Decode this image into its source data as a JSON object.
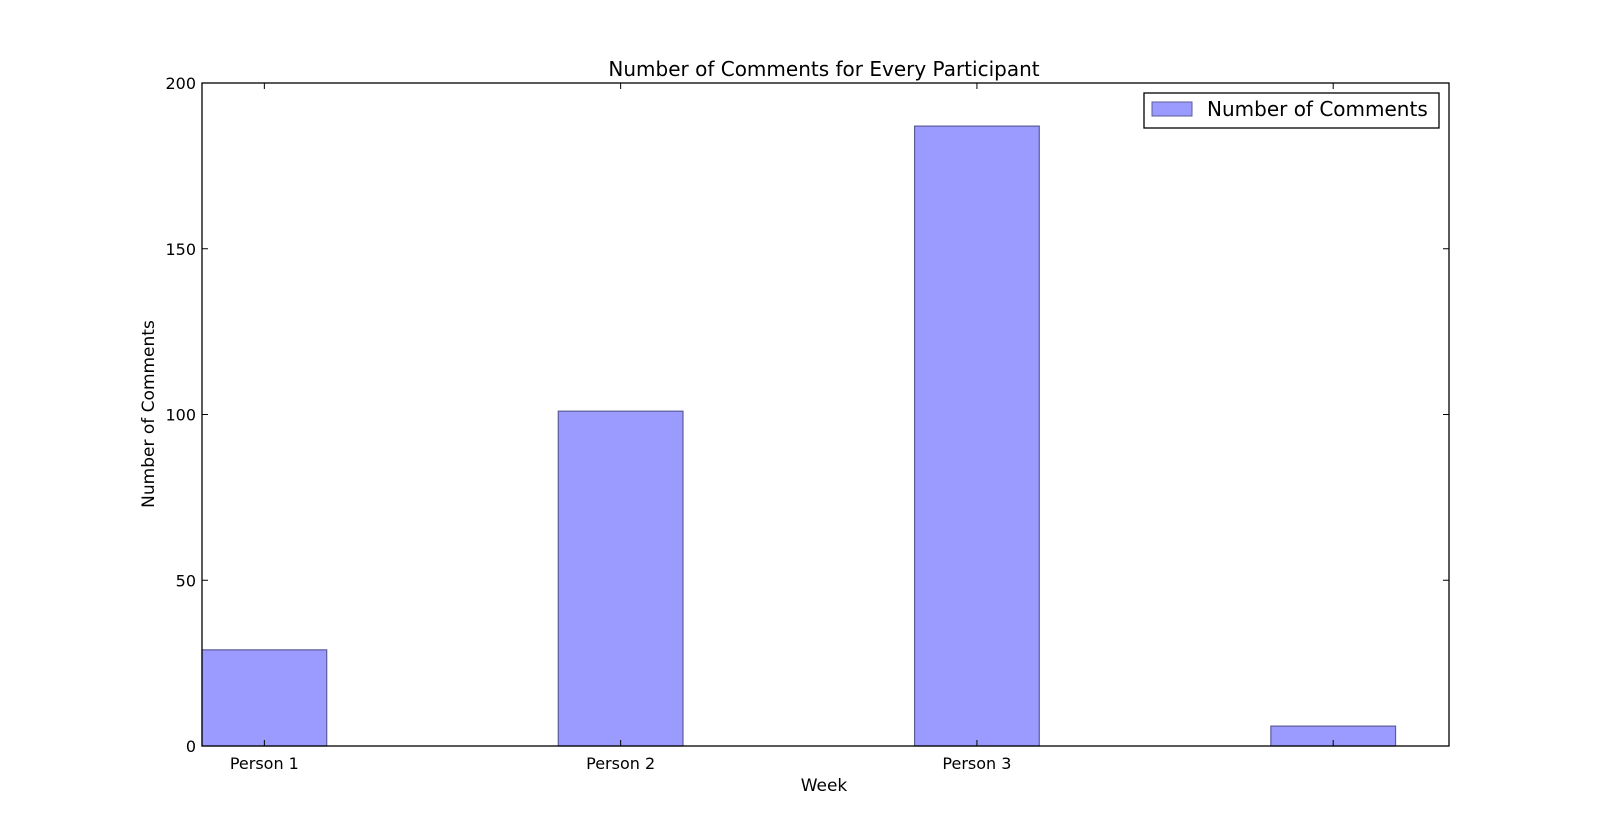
{
  "chart_data": {
    "type": "bar",
    "title": "Number of Comments for Every Participant",
    "xlabel": "Week",
    "ylabel": "Number of Comments",
    "categories": [
      "Person 1",
      "Person 2",
      "Person 3",
      ""
    ],
    "series": [
      {
        "name": "Number of Comments",
        "values": [
          29,
          101,
          187,
          6
        ],
        "color": "#9b9bff",
        "edge_color": "#5c5c99"
      }
    ],
    "ylim": [
      0,
      200
    ],
    "yticks": [
      0,
      50,
      100,
      150,
      200
    ],
    "grid": false,
    "legend_position": "top-right"
  }
}
